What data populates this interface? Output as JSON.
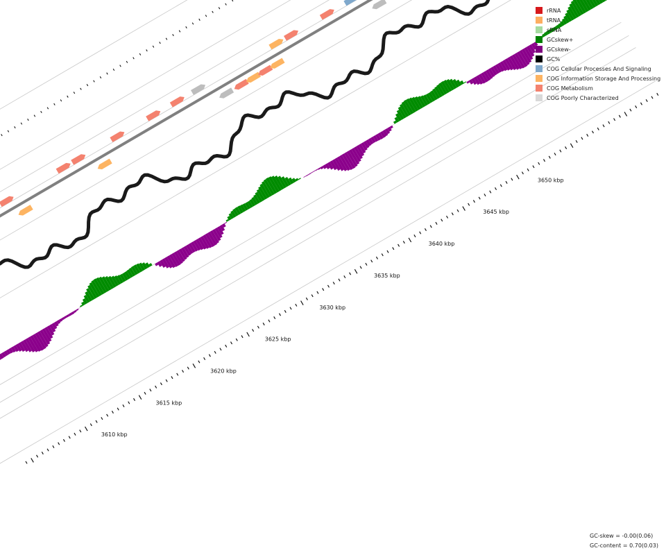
{
  "legend": [
    {
      "label": "rRNA",
      "color": "#d7191c"
    },
    {
      "label": "tRNA",
      "color": "#fdae61"
    },
    {
      "label": "sRNA",
      "color": "#a6dba0"
    },
    {
      "label": "GCskew+",
      "color": "#008000"
    },
    {
      "label": "GCskew-",
      "color": "#800080"
    },
    {
      "label": "GC%",
      "color": "#000000"
    },
    {
      "label": "COG Cellular Processes And Signaling",
      "color": "#7fa8cc"
    },
    {
      "label": "COG Information Storage And Processing",
      "color": "#fdb462"
    },
    {
      "label": "COG Metabolism",
      "color": "#f4826f"
    },
    {
      "label": "COG Poorly Characterized",
      "color": "#d9d9d9"
    }
  ],
  "ticks": [
    {
      "label": "3610 kbp",
      "kbp": 3610
    },
    {
      "label": "3615 kbp",
      "kbp": 3615
    },
    {
      "label": "3620 kbp",
      "kbp": 3620
    },
    {
      "label": "3625 kbp",
      "kbp": 3625
    },
    {
      "label": "3630 kbp",
      "kbp": 3630
    },
    {
      "label": "3635 kbp",
      "kbp": 3635
    },
    {
      "label": "3640 kbp",
      "kbp": 3640
    },
    {
      "label": "3645 kbp",
      "kbp": 3645
    },
    {
      "label": "3650 kbp",
      "kbp": 3650
    }
  ],
  "stats": {
    "gc_skew": "GC-skew = -0.00(0.06)",
    "gc_content": "GC-content = 0.70(0.03)"
  },
  "colors": {
    "metabolism": "#f4826f",
    "info": "#fdb462",
    "cellular": "#7fa8cc",
    "poorly": "#bdbdbd",
    "gc": "#1a1a1a",
    "skew_pos": "#008b00",
    "skew_neg": "#8b008b",
    "backbone": "#808080"
  }
}
